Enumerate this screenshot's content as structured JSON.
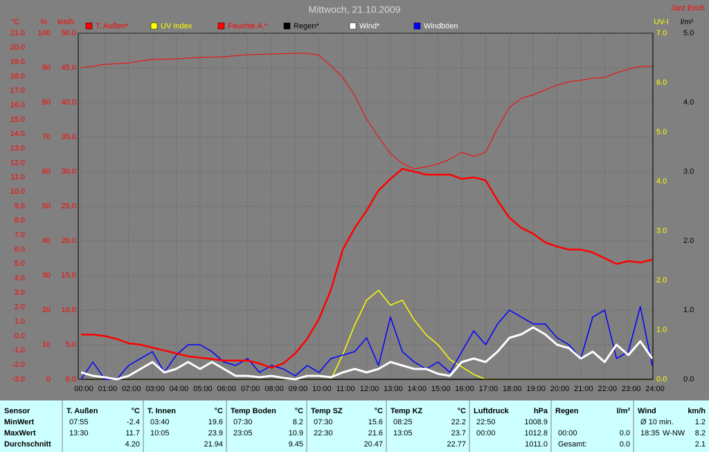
{
  "chart_data": {
    "type": "line",
    "title": "Mittwoch, 21.10.2009",
    "author": "Jarz Erich",
    "x": [
      0,
      0.5,
      1,
      1.5,
      2,
      2.5,
      3,
      3.5,
      4,
      4.5,
      5,
      5.5,
      6,
      6.5,
      7,
      7.5,
      8,
      8.5,
      9,
      9.5,
      10,
      10.5,
      11,
      11.5,
      12,
      12.5,
      13,
      13.5,
      14,
      14.5,
      15,
      15.5,
      16,
      16.5,
      17,
      17.5,
      18,
      18.5,
      19,
      19.5,
      20,
      20.5,
      21,
      21.5,
      22,
      22.5,
      23,
      23.5,
      24
    ],
    "xlim": [
      0,
      24
    ],
    "xticks": [
      {
        "value": 0,
        "label": "00:00"
      },
      {
        "value": 1,
        "label": "01:00"
      },
      {
        "value": 2,
        "label": "02:00"
      },
      {
        "value": 3,
        "label": "03:00"
      },
      {
        "value": 4,
        "label": "04:00"
      },
      {
        "value": 5,
        "label": "05:00"
      },
      {
        "value": 6,
        "label": "06:00"
      },
      {
        "value": 7,
        "label": "07:00"
      },
      {
        "value": 8,
        "label": "08:00"
      },
      {
        "value": 9,
        "label": "09:00"
      },
      {
        "value": 10,
        "label": "10:00"
      },
      {
        "value": 11,
        "label": "11:00"
      },
      {
        "value": 12,
        "label": "12:00"
      },
      {
        "value": 13,
        "label": "13:00"
      },
      {
        "value": 14,
        "label": "14:00"
      },
      {
        "value": 15,
        "label": "15:00"
      },
      {
        "value": 16,
        "label": "16:00"
      },
      {
        "value": 17,
        "label": "17:00"
      },
      {
        "value": 18,
        "label": "18:00"
      },
      {
        "value": 19,
        "label": "19:00"
      },
      {
        "value": 20,
        "label": "20:00"
      },
      {
        "value": 21,
        "label": "21:00"
      },
      {
        "value": 22,
        "label": "22:00"
      },
      {
        "value": 23,
        "label": "23:00"
      },
      {
        "value": 24,
        "label": "24:00"
      }
    ],
    "grid": true,
    "axes": [
      {
        "unit": "°C",
        "color": "#ff0000",
        "lim": [
          -3,
          21
        ],
        "ticks": [
          {
            "value": -3,
            "label": "-3.0"
          },
          {
            "value": -2,
            "label": "-2.0"
          },
          {
            "value": -1,
            "label": "-1.0"
          },
          {
            "value": 0,
            "label": "0.0"
          },
          {
            "value": 1,
            "label": "1.0"
          },
          {
            "value": 2,
            "label": "2.0"
          },
          {
            "value": 3,
            "label": "3.0"
          },
          {
            "value": 4,
            "label": "4.0"
          },
          {
            "value": 5,
            "label": "5.0"
          },
          {
            "value": 6,
            "label": "6.0"
          },
          {
            "value": 7,
            "label": "7.0"
          },
          {
            "value": 8,
            "label": "8.0"
          },
          {
            "value": 9,
            "label": "9.0"
          },
          {
            "value": 10,
            "label": "10.0"
          },
          {
            "value": 11,
            "label": "11.0"
          },
          {
            "value": 12,
            "label": "12.0"
          },
          {
            "value": 13,
            "label": "13.0"
          },
          {
            "value": 14,
            "label": "14.0"
          },
          {
            "value": 15,
            "label": "15.0"
          },
          {
            "value": 16,
            "label": "16.0"
          },
          {
            "value": 17,
            "label": "17.0"
          },
          {
            "value": 18,
            "label": "18.0"
          },
          {
            "value": 19,
            "label": "19.0"
          },
          {
            "value": 20,
            "label": "20.0"
          },
          {
            "value": 21,
            "label": "21.0"
          }
        ]
      },
      {
        "unit": "%",
        "color": "#ff0000",
        "lim": [
          0,
          100
        ],
        "ticks": [
          0,
          10,
          20,
          30,
          40,
          50,
          60,
          70,
          80,
          90,
          100
        ]
      },
      {
        "unit": "km/h",
        "color": "#ff0000",
        "grid": true,
        "lim": [
          0,
          50
        ],
        "ticks": [
          {
            "value": 0,
            "label": "0.0"
          },
          {
            "value": 5,
            "label": "5.0"
          },
          {
            "value": 10,
            "label": "10.0"
          },
          {
            "value": 15,
            "label": "15.0"
          },
          {
            "value": 20,
            "label": "20.0"
          },
          {
            "value": 25,
            "label": "25.0"
          },
          {
            "value": 30,
            "label": "30.0"
          },
          {
            "value": 35,
            "label": "35.0"
          },
          {
            "value": 40,
            "label": "40.0"
          },
          {
            "value": 45,
            "label": "45.0"
          },
          {
            "value": 50,
            "label": "50.0"
          }
        ]
      },
      {
        "unit": "UV-I",
        "color": "#ffff00",
        "lim": [
          0,
          7
        ],
        "ticks": [
          {
            "value": 0,
            "label": "0.0"
          },
          {
            "value": 1,
            "label": "1.0"
          },
          {
            "value": 2,
            "label": "2.0"
          },
          {
            "value": 3,
            "label": "3.0"
          },
          {
            "value": 4,
            "label": "4.0"
          },
          {
            "value": 5,
            "label": "5.0"
          },
          {
            "value": 6,
            "label": "6.0"
          },
          {
            "value": 7,
            "label": "7.0"
          }
        ]
      },
      {
        "unit": "l/m²",
        "color": "#000000",
        "lim": [
          0,
          5
        ],
        "ticks": [
          {
            "value": 0,
            "label": "0.0"
          },
          {
            "value": 1,
            "label": "1.0"
          },
          {
            "value": 2,
            "label": "2.0"
          },
          {
            "value": 3,
            "label": "3.0"
          },
          {
            "value": 4,
            "label": "4.0"
          },
          {
            "value": 5,
            "label": "5.0"
          }
        ]
      }
    ],
    "series": [
      {
        "name": "T. Außen*",
        "color": "#ff0000",
        "legend_color": "#ff0000",
        "axis": 0,
        "values": [
          0.1,
          0.1,
          0,
          -0.2,
          -0.5,
          -0.6,
          -0.8,
          -1.0,
          -1.2,
          -1.4,
          -1.5,
          -1.6,
          -1.7,
          -1.7,
          -1.7,
          -1.9,
          -2.2,
          -1.9,
          -1.2,
          -0.2,
          1.2,
          3.2,
          6.0,
          7.5,
          8.7,
          10.1,
          10.9,
          11.6,
          11.4,
          11.2,
          11.2,
          11.2,
          10.9,
          11.0,
          10.8,
          9.4,
          8.2,
          7.5,
          7.1,
          6.5,
          6.2,
          6.0,
          6.0,
          5.8,
          5.4,
          5.0,
          5.2,
          5.1,
          5.3
        ]
      },
      {
        "name": "UV Index",
        "color": "#ffff00",
        "legend_color": "#ffff00",
        "axis": 3,
        "values": [
          0,
          0,
          0,
          0,
          0,
          0,
          0,
          0,
          0,
          0,
          0,
          0,
          0,
          0,
          0,
          0,
          0,
          0,
          0,
          0,
          0,
          0,
          0.5,
          1.1,
          1.6,
          1.8,
          1.5,
          1.6,
          1.2,
          0.9,
          0.7,
          0.4,
          0.25,
          0.1,
          0,
          0,
          0,
          0,
          0,
          0,
          0,
          0,
          0,
          0,
          0,
          0,
          0,
          0,
          0
        ]
      },
      {
        "name": "Feuchte A.*",
        "color": "#ff0000",
        "legend_color": "#ff0000",
        "axis": 1,
        "values": [
          90,
          90.5,
          91,
          91.2,
          91.4,
          92,
          92.4,
          92.5,
          92.6,
          92.8,
          93,
          93.1,
          93.2,
          93.5,
          93.8,
          93.9,
          94,
          94.1,
          94.2,
          94.2,
          93.6,
          90.6,
          87.2,
          82,
          75.2,
          70,
          65.2,
          62.4,
          60.8,
          61.4,
          62.2,
          63.6,
          65.6,
          64.4,
          65.6,
          72.6,
          78.6,
          81.2,
          82.2,
          83.6,
          85,
          86,
          86.4,
          87,
          87.2,
          88.6,
          89.6,
          90.4,
          90.4
        ]
      },
      {
        "name": "Regen*",
        "color": "#000000",
        "legend_color": "#000000",
        "axis": 4,
        "values": [
          0,
          0,
          0,
          0,
          0,
          0,
          0,
          0,
          0,
          0,
          0,
          0,
          0,
          0,
          0,
          0,
          0,
          0,
          0,
          0,
          0,
          0,
          0,
          0,
          0,
          0,
          0,
          0,
          0,
          0,
          0,
          0,
          0,
          0,
          0,
          0,
          0,
          0,
          0,
          0,
          0,
          0,
          0,
          0,
          0,
          0,
          0,
          0,
          0
        ]
      },
      {
        "name": "Wind*",
        "color": "#ffffff",
        "legend_color": "#ffffff",
        "axis": 2,
        "values": [
          1,
          0.5,
          0.3,
          0,
          0.5,
          1.5,
          2.5,
          1,
          1.5,
          2.5,
          1.5,
          2.5,
          1.5,
          0.5,
          0.5,
          0.3,
          0.5,
          0.2,
          0,
          0.5,
          0.5,
          0.3,
          1,
          1.5,
          1,
          1.5,
          2.5,
          2,
          1.5,
          1.5,
          0.8,
          0.5,
          2.5,
          3,
          2.5,
          4,
          6,
          6.5,
          7.5,
          6.5,
          5,
          4.5,
          3,
          4,
          2.5,
          5,
          3.5,
          5.5,
          3
        ]
      },
      {
        "name": "Windböen",
        "color": "#0000ff",
        "legend_color": "#ffffff",
        "axis": 2,
        "values": [
          0,
          2.5,
          0,
          0,
          2,
          3,
          4,
          1,
          3.5,
          5,
          5,
          4,
          2.5,
          2,
          3,
          1,
          2,
          1.5,
          0.5,
          2,
          1,
          3,
          3.5,
          4,
          6,
          2,
          9,
          4,
          2.5,
          1.5,
          2.5,
          1,
          4,
          7,
          5,
          8,
          10,
          9,
          8,
          8,
          6,
          5,
          3,
          9,
          10,
          3,
          4,
          10.5,
          2
        ]
      }
    ]
  },
  "table": {
    "columns": [
      {
        "name": "Sensor"
      },
      {
        "name": "T. Außen",
        "unit": "°C"
      },
      {
        "name": "T. Innen",
        "unit": "°C"
      },
      {
        "name": "Temp Boden",
        "unit": "°C"
      },
      {
        "name": "Temp SZ",
        "unit": "°C"
      },
      {
        "name": "Temp KZ",
        "unit": "°C"
      },
      {
        "name": "Luftdruck",
        "unit": "hPa"
      },
      {
        "name": "Regen",
        "unit": "l/m²"
      },
      {
        "name": "Wind",
        "unit": "km/h"
      }
    ],
    "rows": [
      {
        "label": "MinWert",
        "cells": [
          [
            "07:55",
            "-2.4"
          ],
          [
            "03:40",
            "19.6"
          ],
          [
            "07:30",
            "8.2"
          ],
          [
            "07:30",
            "15.6"
          ],
          [
            "08:25",
            "22.2"
          ],
          [
            "22:50",
            "1008.9"
          ],
          [],
          [
            "Ø 10 min.",
            "1.2"
          ]
        ]
      },
      {
        "label": "MaxWert",
        "cells": [
          [
            "13:30",
            "11.7"
          ],
          [
            "10:05",
            "23.9"
          ],
          [
            "23:05",
            "10.9"
          ],
          [
            "22:30",
            "21.6"
          ],
          [
            "13:05",
            "23.7"
          ],
          [
            "00:00",
            "1012.8"
          ],
          [
            "00:00",
            "0.0"
          ],
          [
            "18:35",
            "W-NW",
            "8.2"
          ]
        ]
      },
      {
        "label": "Durchschnitt",
        "cells": [
          [
            "4.20"
          ],
          [
            "21.94"
          ],
          [
            "9.45"
          ],
          [
            "20.47"
          ],
          [
            "22.77"
          ],
          [
            "1011.0"
          ],
          [
            "Gesamt:",
            "0.0"
          ],
          [
            "2.1"
          ]
        ]
      }
    ]
  }
}
